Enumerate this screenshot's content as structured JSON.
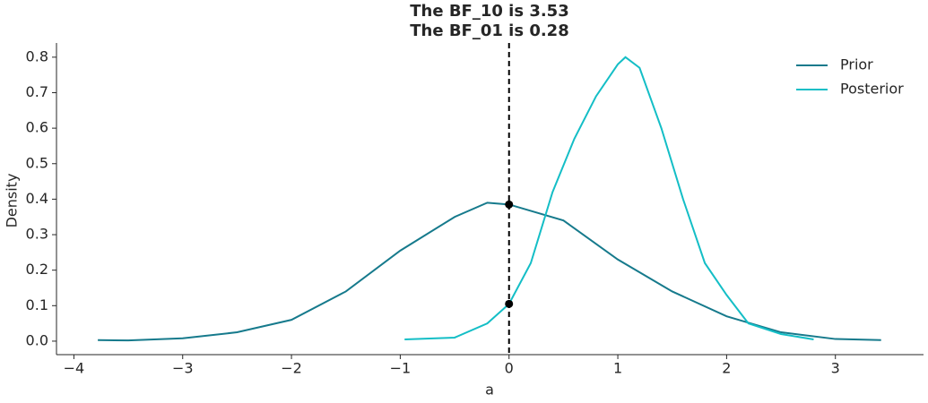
{
  "chart_data": {
    "type": "line",
    "title": [
      "The BF_10 is 3.53",
      "The BF_01 is 0.28"
    ],
    "xlabel": "a",
    "ylabel": "Density",
    "series": [
      {
        "name": "Prior",
        "color": "#167a8c",
        "x": [
          -3.78,
          -3.5,
          -3,
          -2.5,
          -2,
          -1.5,
          -1,
          -0.5,
          -0.2,
          0,
          0.5,
          1,
          1.5,
          2,
          2.5,
          3,
          3.42
        ],
        "values": [
          0.003,
          0.002,
          0.008,
          0.025,
          0.06,
          0.14,
          0.255,
          0.35,
          0.39,
          0.385,
          0.34,
          0.23,
          0.14,
          0.07,
          0.025,
          0.006,
          0.003
        ]
      },
      {
        "name": "Posterior",
        "color": "#14bec6",
        "x": [
          -0.96,
          -0.5,
          -0.2,
          0,
          0.2,
          0.4,
          0.6,
          0.8,
          1.0,
          1.07,
          1.2,
          1.4,
          1.6,
          1.8,
          2.0,
          2.2,
          2.5,
          2.8
        ],
        "values": [
          0.005,
          0.01,
          0.05,
          0.105,
          0.22,
          0.42,
          0.57,
          0.69,
          0.78,
          0.8,
          0.77,
          0.6,
          0.4,
          0.22,
          0.13,
          0.05,
          0.02,
          0.005
        ]
      }
    ],
    "points": {
      "x": [
        0,
        0
      ],
      "y": [
        0.385,
        0.105
      ],
      "color": "#000000"
    },
    "vline": 0,
    "xlim": [
      -4.16,
      3.81
    ],
    "ylim": [
      -0.038,
      0.84
    ],
    "xticks": [
      {
        "value": -4,
        "label": "−4"
      },
      {
        "value": -3,
        "label": "−3"
      },
      {
        "value": -2,
        "label": "−2"
      },
      {
        "value": -1,
        "label": "−1"
      },
      0,
      1,
      2,
      3
    ],
    "yticks": [
      {
        "value": 0,
        "label": "0.0"
      },
      0.1,
      0.2,
      0.3,
      0.4,
      0.5,
      0.6,
      0.7,
      0.8
    ],
    "legend": "upper right"
  }
}
